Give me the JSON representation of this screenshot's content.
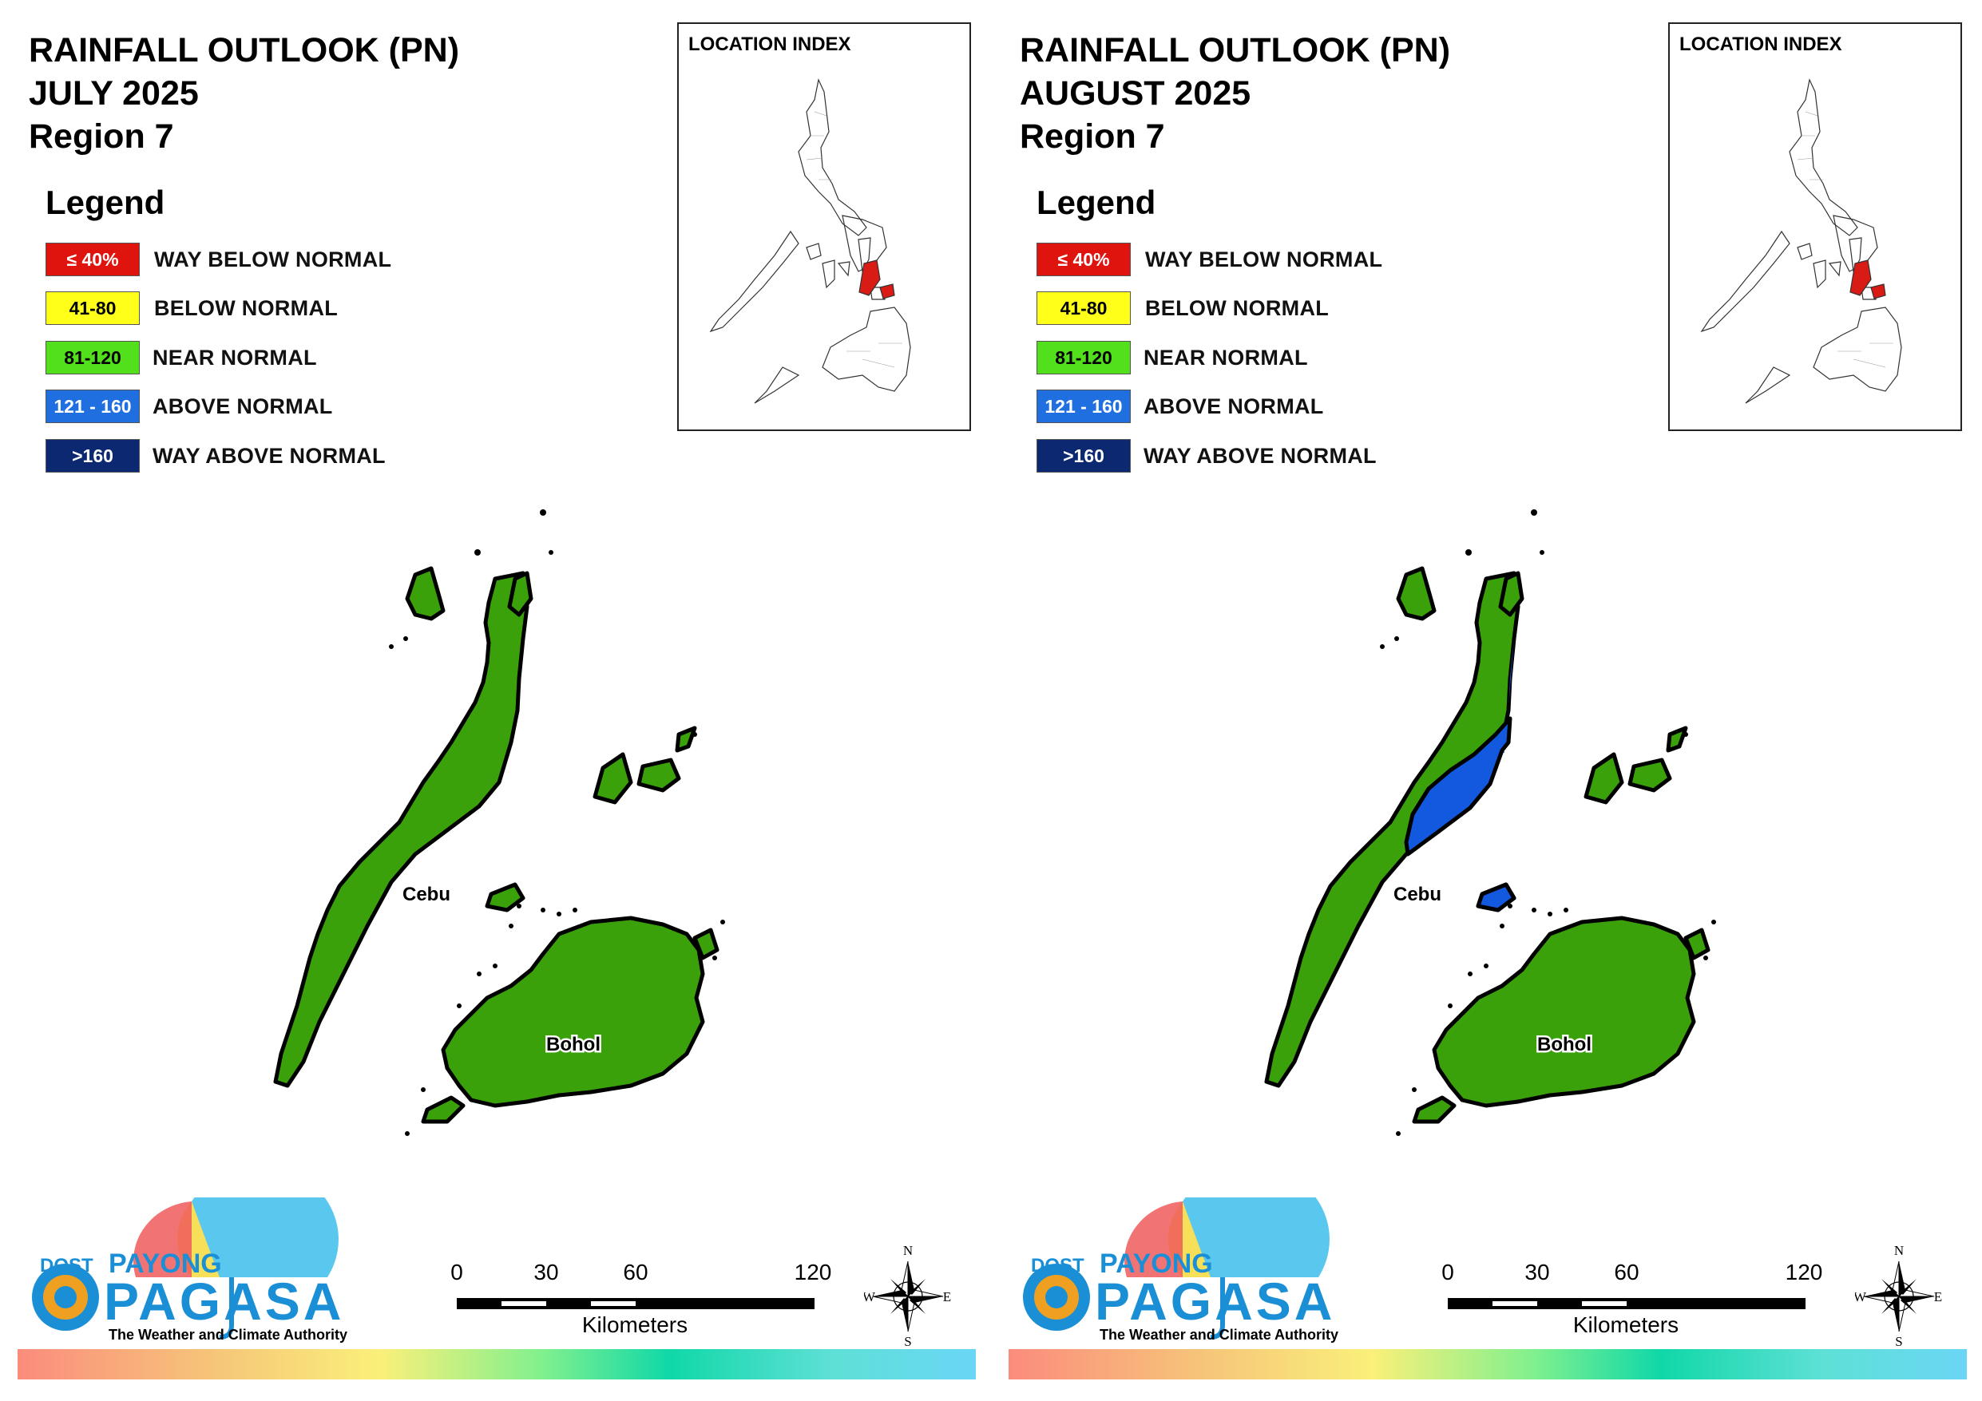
{
  "panels": [
    {
      "title_line1": "RAINFALL OUTLOOK (PN)",
      "title_line2": "JULY 2025",
      "title_line3": "Region 7",
      "legend_title": "Legend",
      "legend": [
        {
          "range": "≤ 40%",
          "label": "WAY BELOW NORMAL",
          "color": "#e0140f",
          "text_color": "#ffffff"
        },
        {
          "range": "41-80",
          "label": "BELOW NORMAL",
          "color": "#ffff1a",
          "text_color": "#000000"
        },
        {
          "range": "81-120",
          "label": "NEAR NORMAL",
          "color": "#52e01c",
          "text_color": "#000000"
        },
        {
          "range": "121 - 160",
          "label": "ABOVE NORMAL",
          "color": "#1f6fe0",
          "text_color": "#ffffff"
        },
        {
          "range": ">160",
          "label": "WAY ABOVE NORMAL",
          "color": "#0b2870",
          "text_color": "#ffffff"
        }
      ],
      "inset_title": "LOCATION INDEX",
      "provinces": [
        {
          "name": "Cebu",
          "category": "NEAR NORMAL"
        },
        {
          "name": "Bohol",
          "category": "NEAR NORMAL"
        }
      ],
      "cebu_zone_above_normal": false,
      "scale_labels": [
        "0",
        "30",
        "60",
        "120"
      ],
      "scale_units": "Kilometers",
      "compass": {
        "n": "N",
        "s": "S",
        "e": "E",
        "w": "W"
      },
      "logo": {
        "dost": "DOST",
        "payong": "PAYONG",
        "pagasa": "PAGASA",
        "tagline": "The Weather and Climate Authority"
      }
    },
    {
      "title_line1": "RAINFALL OUTLOOK (PN)",
      "title_line2": "AUGUST 2025",
      "title_line3": "Region 7",
      "legend_title": "Legend",
      "legend": [
        {
          "range": "≤ 40%",
          "label": "WAY BELOW NORMAL",
          "color": "#e0140f",
          "text_color": "#ffffff"
        },
        {
          "range": "41-80",
          "label": "BELOW NORMAL",
          "color": "#ffff1a",
          "text_color": "#000000"
        },
        {
          "range": "81-120",
          "label": "NEAR NORMAL",
          "color": "#52e01c",
          "text_color": "#000000"
        },
        {
          "range": "121 - 160",
          "label": "ABOVE NORMAL",
          "color": "#1f6fe0",
          "text_color": "#ffffff"
        },
        {
          "range": ">160",
          "label": "WAY ABOVE NORMAL",
          "color": "#0b2870",
          "text_color": "#ffffff"
        }
      ],
      "inset_title": "LOCATION INDEX",
      "provinces": [
        {
          "name": "Cebu",
          "category": "NEAR NORMAL"
        },
        {
          "name": "Bohol",
          "category": "NEAR NORMAL"
        }
      ],
      "cebu_zone_above_normal": true,
      "scale_labels": [
        "0",
        "30",
        "60",
        "120"
      ],
      "scale_units": "Kilometers",
      "compass": {
        "n": "N",
        "s": "S",
        "e": "E",
        "w": "W"
      },
      "logo": {
        "dost": "DOST",
        "payong": "PAYONG",
        "pagasa": "PAGASA",
        "tagline": "The Weather and Climate Authority"
      }
    }
  ],
  "colors": {
    "near_normal_fill": "#3aa10a",
    "above_normal_fill": "#1259e0",
    "highlight_region": "#d81b14"
  }
}
